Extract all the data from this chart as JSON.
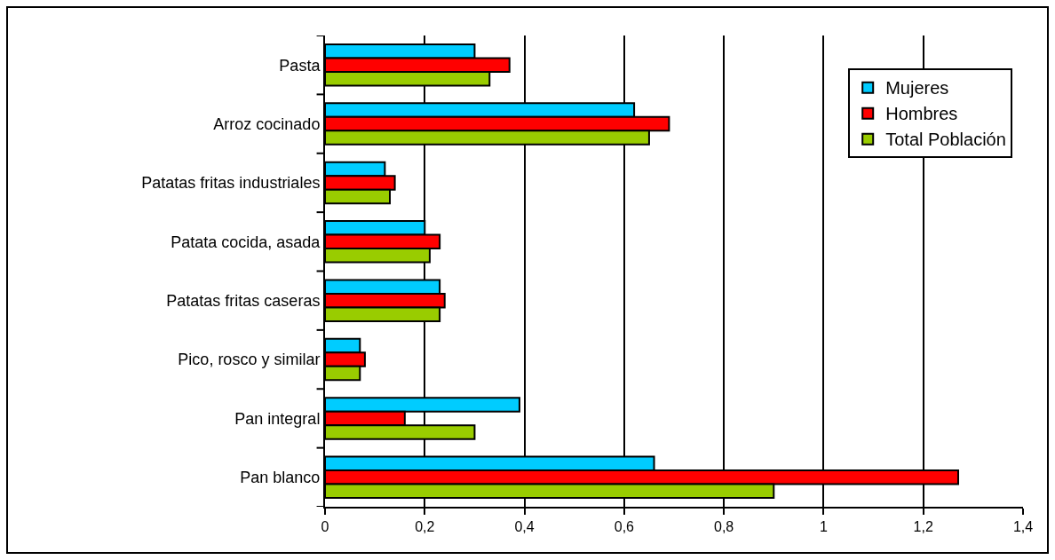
{
  "chart_data": {
    "type": "bar",
    "orientation": "horizontal",
    "categories": [
      "Pasta",
      "Arroz cocinado",
      "Patatas fritas industriales",
      "Patata cocida, asada",
      "Patatas fritas caseras",
      "Pico, rosco y similar",
      "Pan integral",
      "Pan blanco"
    ],
    "series": [
      {
        "name": "Mujeres",
        "color": "#00ccff",
        "values": [
          0.3,
          0.62,
          0.12,
          0.2,
          0.23,
          0.07,
          0.39,
          0.66
        ]
      },
      {
        "name": "Hombres",
        "color": "#ff0000",
        "values": [
          0.37,
          0.69,
          0.14,
          0.23,
          0.24,
          0.08,
          0.16,
          1.27
        ]
      },
      {
        "name": "Total Población",
        "color": "#99cc00",
        "values": [
          0.33,
          0.65,
          0.13,
          0.21,
          0.23,
          0.07,
          0.3,
          0.9
        ]
      }
    ],
    "xlim": [
      0,
      1.4
    ],
    "xticks": [
      0,
      {
        "value": 0.2,
        "label": "0,2"
      },
      {
        "value": 0.4,
        "label": "0,4"
      },
      {
        "value": 0.6,
        "label": "0,6"
      },
      {
        "value": 0.8,
        "label": "0,8"
      },
      1,
      {
        "value": 1.2,
        "label": "1,2"
      },
      {
        "value": 1.4,
        "label": "1,4"
      }
    ],
    "grid": "x",
    "legend": "top right"
  }
}
